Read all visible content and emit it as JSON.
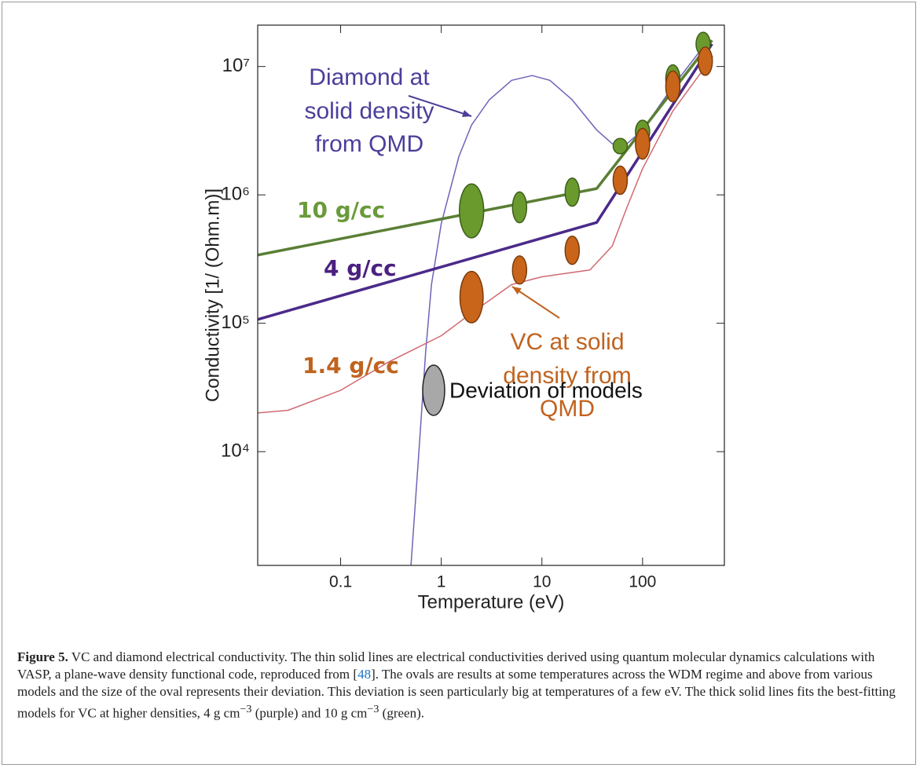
{
  "chart_data": {
    "type": "line",
    "xlabel": "Temperature (eV)",
    "ylabel": "Conductivity [1/ (Ohm.m)]",
    "xscale": "log",
    "yscale": "log",
    "xlim": [
      0.015,
      650
    ],
    "ylim": [
      1300,
      21000000
    ],
    "xticks": [
      0.1,
      1,
      10,
      100
    ],
    "yticks": [
      {
        "value": 10000,
        "label": "10⁴"
      },
      {
        "value": 100000,
        "label": "10⁵"
      },
      {
        "value": 1000000,
        "label": "10⁶"
      },
      {
        "value": 10000000,
        "label": "10⁷"
      }
    ],
    "series": [
      {
        "label": [
          "Diamond at",
          "solid density",
          "from QMD"
        ],
        "color": "#6f63b8",
        "text_color": "#4b3f9a",
        "width": 1.5,
        "x": [
          0.5,
          0.6,
          0.7,
          0.8,
          1,
          1.5,
          2,
          3,
          5,
          8,
          12,
          20,
          35,
          50,
          70,
          100,
          200,
          450
        ],
        "y": [
          1300,
          10000,
          60000,
          200000,
          600000,
          2000000,
          3500000,
          5500000,
          7800000,
          8500000,
          7800000,
          5500000,
          3200000,
          2500000,
          2500000,
          3200000,
          7000000,
          16000000
        ]
      },
      {
        "label": [
          "VC at solid",
          "density from",
          "QMD"
        ],
        "color": "#d06a70",
        "text_color": "#c0631f",
        "width": 1.5,
        "x": [
          0.015,
          0.03,
          0.1,
          0.3,
          1,
          2,
          5,
          10,
          30,
          50,
          70,
          100,
          200,
          500
        ],
        "y": [
          20000,
          21000,
          30000,
          50000,
          80000,
          120000,
          200000,
          230000,
          260000,
          400000,
          800000,
          1600000,
          4500000,
          12000000
        ]
      },
      {
        "name": "4 g/cc",
        "color": "#4b2a8a",
        "text_color": "#4b2080",
        "width": 3.5,
        "x": [
          0.015,
          35,
          490
        ],
        "y": [
          107000,
          610000,
          15000000
        ]
      },
      {
        "name": "10 g/cc",
        "color": "#5a7f35",
        "text_color": "#6a9a3a",
        "width": 3.5,
        "x": [
          0.015,
          35,
          490
        ],
        "y": [
          340000,
          1120000,
          16000000
        ]
      }
    ],
    "ovals": [
      {
        "color": "#6a9a2e",
        "edge": "#3d5e1a",
        "x": [
          2,
          6,
          20,
          60,
          100,
          200,
          400
        ],
        "y": [
          750000,
          800000,
          1050000,
          2400000,
          3100000,
          8000000,
          15000000
        ],
        "size": [
          0.21,
          0.12,
          0.11,
          0.06,
          0.09,
          0.11,
          0.09
        ]
      },
      {
        "name": "1.4 g/cc",
        "color": "#c8651b",
        "edge": "#7a3c0a",
        "text_color": "#c0631f",
        "x": [
          2,
          6,
          20,
          60,
          100,
          200,
          420
        ],
        "y": [
          160000,
          260000,
          370000,
          1300000,
          2500000,
          7000000,
          11000000
        ],
        "size": [
          0.2,
          0.11,
          0.11,
          0.11,
          0.12,
          0.12,
          0.11
        ]
      }
    ],
    "legend_label": "Deviation of models"
  },
  "caption": {
    "label": "Figure 5.",
    "text1": " VC and diamond electrical conductivity. The thin solid lines are electrical conductivities derived using quantum molecular dynamics calculations with VASP, a plane-wave density functional code, reproduced from [",
    "ref": "48",
    "text2": "]. The ovals are results at some temperatures across the WDM regime and above from various models and the size of the oval represents their deviation. This deviation is seen particularly big at temperatures of a few eV. The thick solid lines fits the best-fitting models for VC at higher densities, 4 g cm",
    "sup1": "−3",
    "text3": " (purple) and 10 g cm",
    "sup2": "−3",
    "text4": " (green)."
  }
}
